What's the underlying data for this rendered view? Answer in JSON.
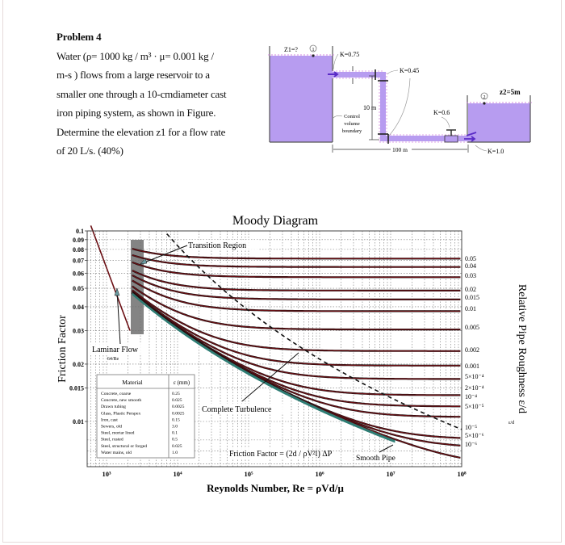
{
  "problem": {
    "title": "Problem 4",
    "lines": [
      "Water (ρ= 1000 kg / m³ · μ= 0.001 kg /",
      "m-s ) flows from a large reservoir to a",
      "smaller one through a 10-cmdiameter cast",
      "iron piping system, as shown in Figure.",
      "Determine the elevation z1 for a flow rate",
      "of 20 L/s. (40%)"
    ]
  },
  "pipe_figure": {
    "z1_label": "Z1=?",
    "point1_label": "1",
    "point2_label": "2",
    "z2_label": "z2=5m",
    "k_entrance": "K=0.75",
    "k_elbow": "K=0.45",
    "k_valve": "K=0.6",
    "k_exit": "K=1.0",
    "vertical_length": "10 m",
    "horizontal_length": "100 m",
    "control_volume": [
      "Control",
      "volume",
      "boundary"
    ],
    "water_color": "#b79cf0",
    "pipe_color": "#b79cf0"
  },
  "chart_data": {
    "type": "line",
    "title": "Moody Diagram",
    "xlabel": "Reynolds Number, Re = ρVd/μ",
    "ylabel": "Friction Factor",
    "right_label": "Relative Pipe Roughness ε/d",
    "x_scale": "log",
    "y_scale": "log",
    "xlim": [
      600,
      100000000
    ],
    "ylim": [
      0.006,
      0.1
    ],
    "x_ticks": [
      "10³",
      "10⁴",
      "10⁵",
      "10⁶",
      "10⁷",
      "10⁸"
    ],
    "x_tick_values": [
      1000,
      10000,
      100000,
      1000000,
      10000000,
      100000000
    ],
    "y_ticks": [
      "0.1",
      "0.09",
      "0.08",
      "0.07",
      "0.06",
      "0.05",
      "0.04",
      "0.03",
      "0.02",
      "0.015",
      "0.01"
    ],
    "y_tick_values": [
      0.1,
      0.09,
      0.08,
      0.07,
      0.06,
      0.05,
      0.04,
      0.03,
      0.02,
      0.015,
      0.01
    ],
    "relative_roughness": [
      {
        "value": 0.05,
        "label": "0.05"
      },
      {
        "value": 0.04,
        "label": "0.04"
      },
      {
        "value": 0.03,
        "label": "0.03"
      },
      {
        "value": 0.02,
        "label": "0.02"
      },
      {
        "value": 0.015,
        "label": "0.015"
      },
      {
        "value": 0.01,
        "label": "0.01"
      },
      {
        "value": 0.005,
        "label": "0.005"
      },
      {
        "value": 0.002,
        "label": "0.002"
      },
      {
        "value": 0.001,
        "label": "0.001"
      },
      {
        "value": 0.0005,
        "label": "5×10⁻⁴"
      },
      {
        "value": 0.0002,
        "label": "2×10⁻⁴"
      },
      {
        "value": 0.0001,
        "label": "10⁻⁴"
      },
      {
        "value": 5e-05,
        "label": "5×10⁻⁵"
      },
      {
        "value": 1e-05,
        "label": "10⁻⁵"
      },
      {
        "value": 5e-06,
        "label": "5×10⁻⁶"
      },
      {
        "value": 1e-06,
        "label": "10⁻⁶"
      }
    ],
    "laminar": {
      "label": "Laminar Flow",
      "formula": "64/Re",
      "re_range": [
        600,
        2133
      ]
    },
    "transition_region": {
      "label": "Transition Region",
      "re_range": [
        2000,
        4000
      ]
    },
    "complete_turbulence_label": "Complete Turbulence",
    "smooth_pipe_label": "Smooth Pipe",
    "friction_factor_formula": "Friction Factor = (2d / ρV²l) ΔP",
    "line_color": "#6b0f14",
    "smooth_color": "#2e7d74",
    "materials_table": {
      "headers": [
        "Material",
        "ε (mm)"
      ],
      "rows": [
        [
          "Concrete, coarse",
          "0.25"
        ],
        [
          "Concrete, new smooth",
          "0.025"
        ],
        [
          "Drawn tubing",
          "0.0025"
        ],
        [
          "Glass, Plastic Perspex",
          "0.0025"
        ],
        [
          "Iron, cast",
          "0.15"
        ],
        [
          "Sewers, old",
          "3.0"
        ],
        [
          "Steel, mortar lined",
          "0.1"
        ],
        [
          "Steel, rusted",
          "0.5"
        ],
        [
          "Steel, structural or forged",
          "0.025"
        ],
        [
          "Water mains, old",
          "1.0"
        ]
      ]
    }
  }
}
